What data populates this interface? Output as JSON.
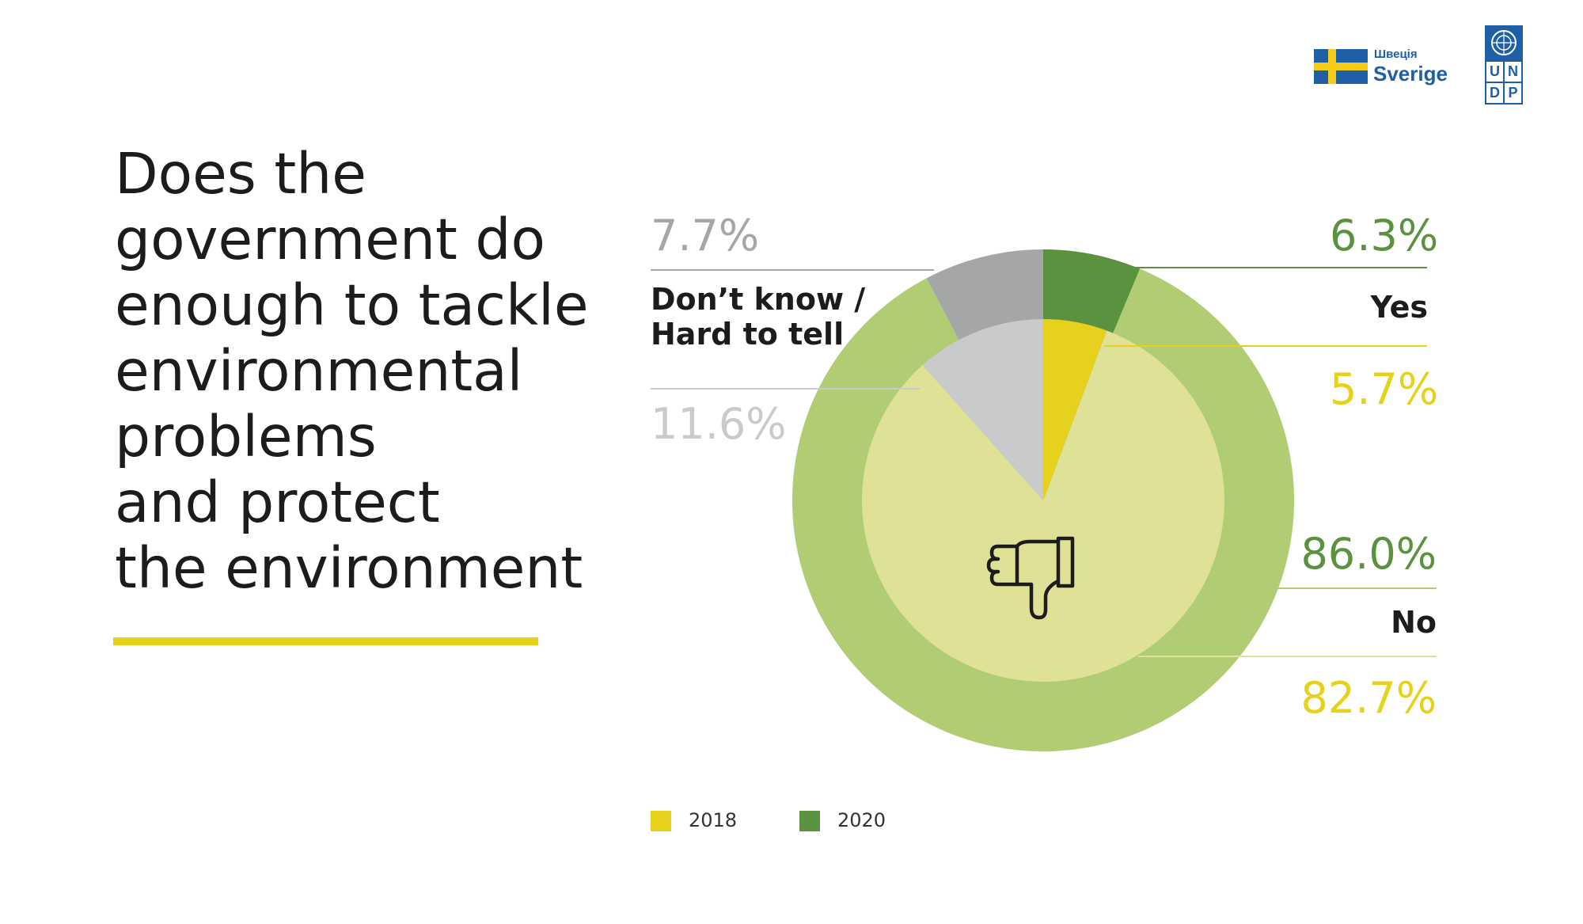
{
  "title": {
    "lines": [
      "Does the",
      "government do",
      "enough to tackle",
      "environmental",
      "problems",
      "and protect",
      "the environment"
    ]
  },
  "logos": {
    "sweden_small": "Швеція",
    "sweden_large": "Sverige",
    "undp_letters": [
      "U",
      "N",
      "D",
      "P"
    ]
  },
  "colors": {
    "yellow_2018": "#e6d21c",
    "green_2020": "#5b9240",
    "no_2020": "#b0cd73",
    "no_2018": "#dfe196",
    "dontknow_2020": "#a5a6a8",
    "dontknow_2018": "#c9cacc",
    "undp_blue": "#1e5fa6"
  },
  "chart_data": {
    "type": "pie",
    "title": "Does the government do enough to tackle environmental problems and protect the environment",
    "categories": [
      "Yes",
      "No",
      "Don’t know / Hard to tell"
    ],
    "category_labels": {
      "yes": "Yes",
      "no": "No",
      "dontknow": "Don’t know / Hard to tell",
      "dontknow_line1": "Don’t know /",
      "dontknow_line2": "Hard to tell"
    },
    "series": [
      {
        "name": "2020",
        "ring": "outer",
        "values": [
          6.3,
          86.0,
          7.7
        ]
      },
      {
        "name": "2018",
        "ring": "inner",
        "values": [
          5.7,
          82.7,
          11.6
        ]
      }
    ],
    "data_labels": {
      "yes_2020": "6.3%",
      "yes_2018": "5.7%",
      "no_2020": "86.0%",
      "no_2018": "82.7%",
      "dontknow_2020": "7.7%",
      "dontknow_2018": "11.6%"
    },
    "legend": {
      "placement": "bottom",
      "items": [
        {
          "label": "2018",
          "color": "#e6d21c"
        },
        {
          "label": "2020",
          "color": "#5b9240"
        }
      ]
    },
    "center_icon": "thumbs-down-icon"
  }
}
